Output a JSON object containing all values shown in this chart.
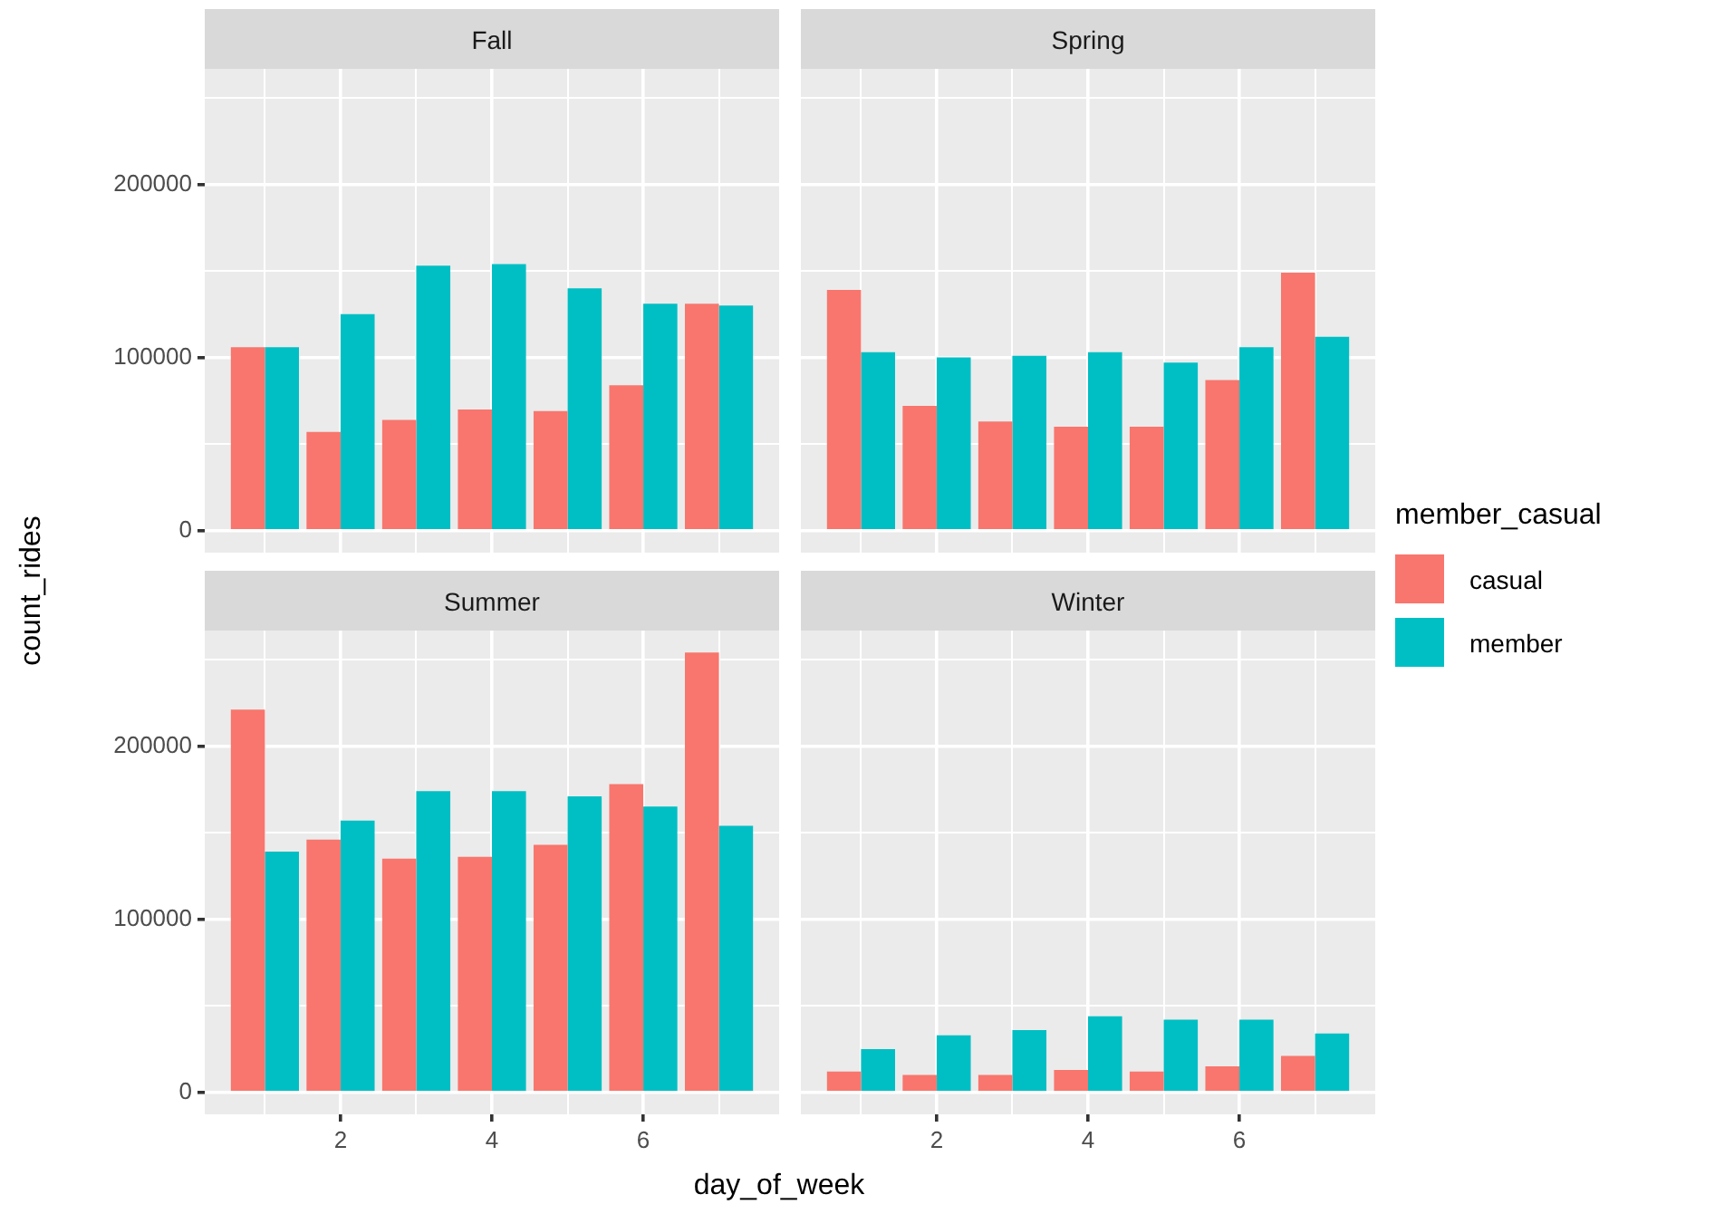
{
  "chart_data": [
    {
      "type": "bar",
      "title": "Fall",
      "ylabel": "count_rides",
      "xlabel": "day_of_week",
      "legend_title": "member_casual",
      "legend": "right",
      "grid": true,
      "tick_labels": "y",
      "x": [
        1,
        2,
        3,
        4,
        5,
        6,
        7
      ],
      "xlim": [
        0.205,
        7.795
      ],
      "xticks": [
        {
          "value": 1,
          "label": null
        },
        2,
        {
          "value": 3,
          "label": null
        },
        4,
        {
          "value": 5,
          "label": null
        },
        6,
        {
          "value": 7,
          "label": null
        }
      ],
      "ylim": [
        -12700,
        266700
      ],
      "yticks": [
        0,
        {
          "value": 50000,
          "label": null
        },
        100000,
        {
          "value": 150000,
          "label": null
        },
        200000,
        {
          "value": 250000,
          "label": null
        }
      ],
      "series": [
        {
          "name": "casual",
          "color": "#f8766d",
          "values": [
            106000,
            57000,
            64000,
            70000,
            69000,
            84000,
            131000
          ]
        },
        {
          "name": "member",
          "color": "#00bfc4",
          "values": [
            106000,
            125000,
            153000,
            154000,
            140000,
            131000,
            130000
          ]
        }
      ]
    },
    {
      "type": "bar",
      "title": "Spring",
      "grid": true,
      "tick_labels": false,
      "x": [
        1,
        2,
        3,
        4,
        5,
        6,
        7
      ],
      "xlim": [
        0.205,
        7.795
      ],
      "xticks": [
        {
          "value": 1,
          "label": null
        },
        2,
        {
          "value": 3,
          "label": null
        },
        4,
        {
          "value": 5,
          "label": null
        },
        6,
        {
          "value": 7,
          "label": null
        }
      ],
      "ylim": [
        -12700,
        266700
      ],
      "yticks": [
        0,
        {
          "value": 50000,
          "label": null
        },
        100000,
        {
          "value": 150000,
          "label": null
        },
        200000,
        {
          "value": 250000,
          "label": null
        }
      ],
      "series": [
        {
          "color": "#f8766d",
          "values": [
            139000,
            72000,
            63000,
            60000,
            60000,
            87000,
            149000
          ]
        },
        {
          "color": "#00bfc4",
          "values": [
            103000,
            100000,
            101000,
            103000,
            97000,
            106000,
            112000
          ]
        }
      ]
    },
    {
      "type": "bar",
      "title": "Summer",
      "grid": true,
      "x": [
        1,
        2,
        3,
        4,
        5,
        6,
        7
      ],
      "xlim": [
        0.205,
        7.795
      ],
      "xticks": [
        {
          "value": 1,
          "label": null
        },
        2,
        {
          "value": 3,
          "label": null
        },
        4,
        {
          "value": 5,
          "label": null
        },
        6,
        {
          "value": 7,
          "label": null
        }
      ],
      "ylim": [
        -12700,
        266700
      ],
      "yticks": [
        0,
        {
          "value": 50000,
          "label": null
        },
        100000,
        {
          "value": 150000,
          "label": null
        },
        200000,
        {
          "value": 250000,
          "label": null
        }
      ],
      "series": [
        {
          "color": "#f8766d",
          "values": [
            221000,
            146000,
            135000,
            136000,
            143000,
            178000,
            254000
          ]
        },
        {
          "color": "#00bfc4",
          "values": [
            139000,
            157000,
            174000,
            174000,
            171000,
            165000,
            154000
          ]
        }
      ]
    },
    {
      "type": "bar",
      "title": "Winter",
      "grid": true,
      "tick_labels": "x",
      "x": [
        1,
        2,
        3,
        4,
        5,
        6,
        7
      ],
      "xlim": [
        0.205,
        7.795
      ],
      "xticks": [
        {
          "value": 1,
          "label": null
        },
        2,
        {
          "value": 3,
          "label": null
        },
        4,
        {
          "value": 5,
          "label": null
        },
        6,
        {
          "value": 7,
          "label": null
        }
      ],
      "ylim": [
        -12700,
        266700
      ],
      "yticks": [
        0,
        {
          "value": 50000,
          "label": null
        },
        100000,
        {
          "value": 150000,
          "label": null
        },
        200000,
        {
          "value": 250000,
          "label": null
        }
      ],
      "series": [
        {
          "color": "#f8766d",
          "values": [
            12000,
            10000,
            10000,
            13000,
            12000,
            15000,
            21000
          ]
        },
        {
          "color": "#00bfc4",
          "values": [
            25000,
            33000,
            36000,
            44000,
            42000,
            42000,
            34000
          ]
        }
      ]
    }
  ]
}
